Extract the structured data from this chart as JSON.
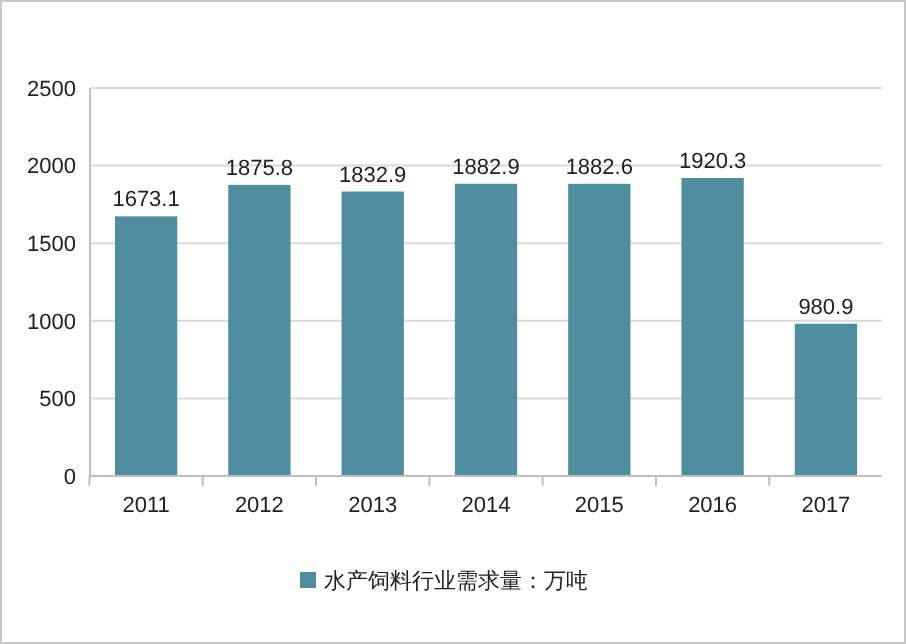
{
  "chart_data": {
    "type": "bar",
    "categories": [
      "2011",
      "2012",
      "2013",
      "2014",
      "2015",
      "2016",
      "2017"
    ],
    "series": [
      {
        "name": "水产饲料行业需求量：万吨",
        "color": "#4f8e9f",
        "values": [
          1673.1,
          1875.8,
          1832.9,
          1882.9,
          1882.6,
          1920.3,
          980.9
        ]
      }
    ],
    "ylim": [
      0,
      2500
    ],
    "yticks": [
      0,
      500,
      1000,
      1500,
      2000,
      2500
    ],
    "grid": "y",
    "legend": "bottom",
    "data_labels": true
  }
}
